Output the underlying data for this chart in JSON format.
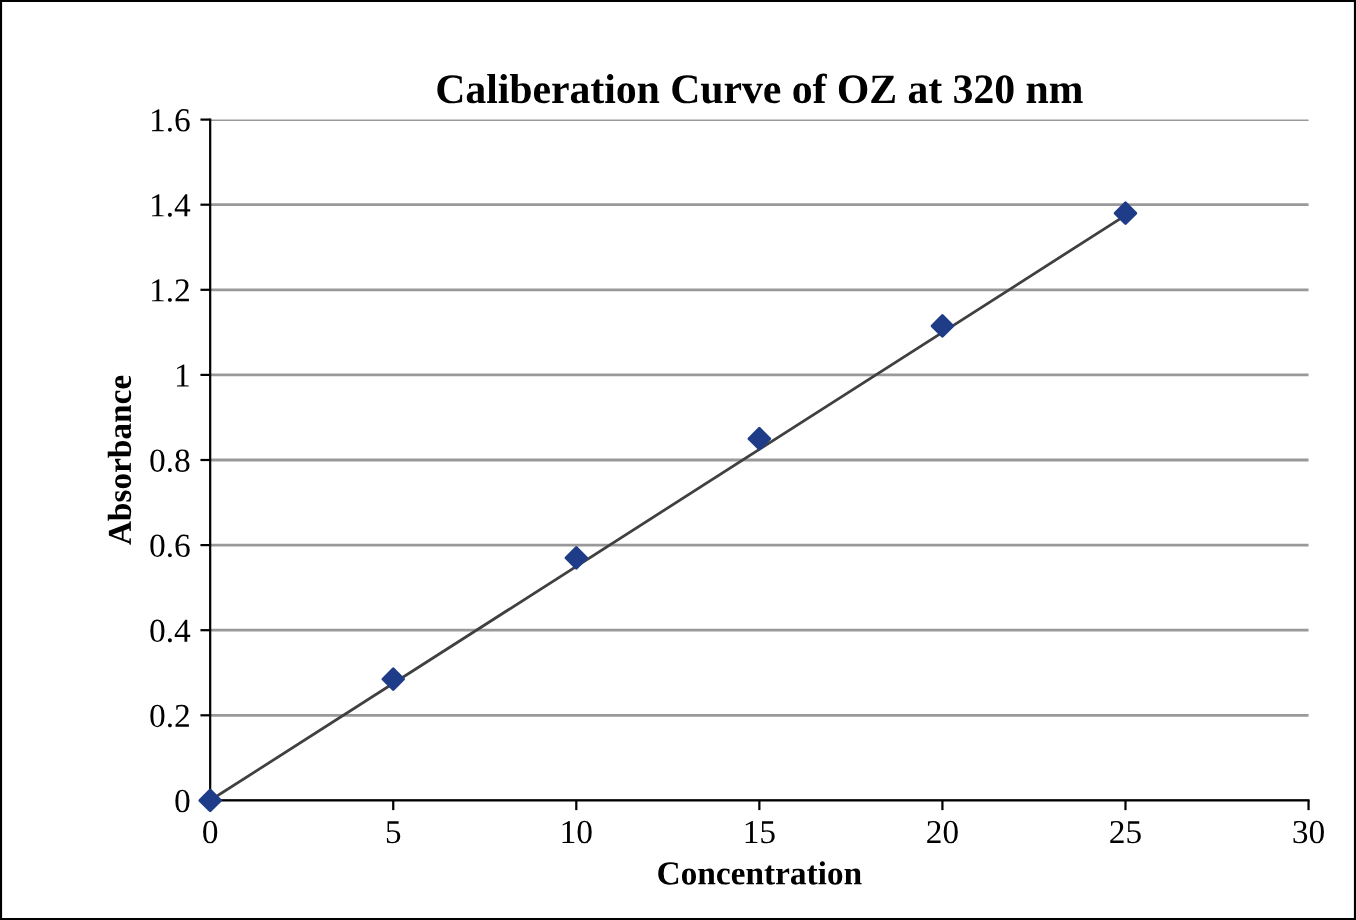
{
  "chart_data": {
    "type": "scatter",
    "title": "Caliberation Curve of OZ at 320 nm",
    "xlabel": "Concentration",
    "ylabel": "Absorbance",
    "xlim": [
      0,
      30
    ],
    "xticks": [
      0,
      5,
      10,
      15,
      20,
      25,
      30
    ],
    "ylim": [
      0,
      1.6
    ],
    "yticks": [
      0,
      0.2,
      0.4,
      0.6,
      0.8,
      1,
      1.2,
      1.4,
      1.6
    ],
    "grid": "y",
    "series": [
      {
        "type": "line",
        "color": "#404040",
        "x": [
          0,
          25
        ],
        "values": [
          0,
          1.375
        ],
        "marker": "none"
      },
      {
        "color": "#1f3c88",
        "x": [
          0,
          5,
          10,
          15,
          20,
          25
        ],
        "values": [
          0,
          0.285,
          0.57,
          0.85,
          1.115,
          1.38
        ],
        "marker": "diamond"
      }
    ]
  }
}
